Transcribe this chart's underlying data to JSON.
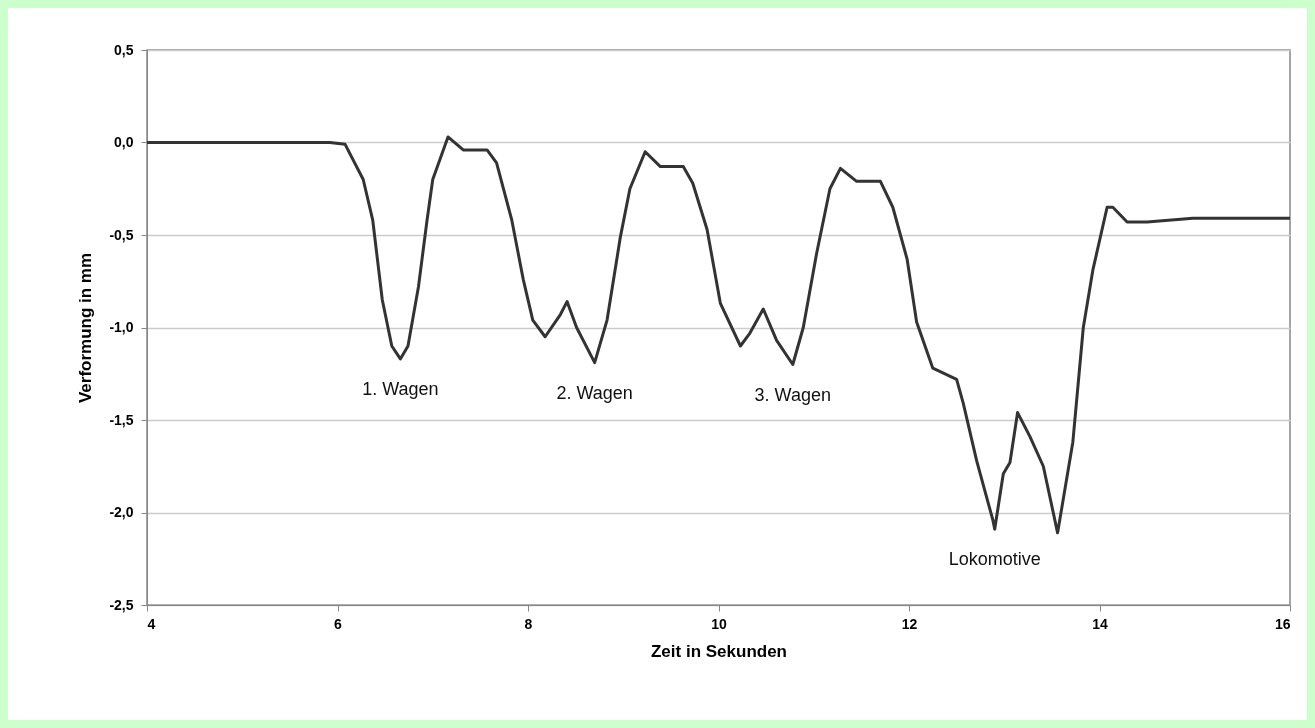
{
  "chart_data": {
    "type": "line",
    "xlabel": "Zeit in Sekunden",
    "ylabel": "Verformung in mm",
    "xlim": [
      4,
      16
    ],
    "xticks": [
      4,
      6,
      8,
      10,
      12,
      14,
      16
    ],
    "ylim": [
      -2.5,
      0.5
    ],
    "yticks": [
      {
        "value": 0.5,
        "label": "0,5"
      },
      {
        "value": 0,
        "label": "0,0"
      },
      {
        "value": -0.5,
        "label": "-0,5"
      },
      {
        "value": -1,
        "label": "-1,0"
      },
      {
        "value": -1.5,
        "label": "-1,5"
      },
      {
        "value": -2,
        "label": "-2,0"
      },
      {
        "value": -2.5,
        "label": "-2,5"
      }
    ],
    "grid": "y",
    "marker": "none",
    "line_style": "solid",
    "series": [
      {
        "color": "#333333",
        "x": [
          4,
          5.92,
          6.08,
          6.27,
          6.37,
          6.47,
          6.57,
          6.66,
          6.74,
          6.85,
          6.94,
          7.0,
          7.16,
          7.32,
          7.57,
          7.67,
          7.83,
          7.95,
          8.05,
          8.18,
          8.34,
          8.41,
          8.51,
          8.7,
          8.83,
          8.97,
          9.07,
          9.23,
          9.39,
          9.63,
          9.73,
          9.88,
          10.02,
          10.23,
          10.33,
          10.47,
          10.61,
          10.78,
          10.89,
          11.03,
          11.17,
          11.28,
          11.45,
          11.7,
          11.83,
          11.98,
          12.08,
          12.25,
          12.5,
          12.57,
          12.71,
          12.88,
          12.9,
          12.99,
          13.06,
          13.14,
          13.27,
          13.41,
          13.56,
          13.72,
          13.83,
          13.93,
          14.08,
          14.14,
          14.29,
          14.5,
          14.98,
          16
        ],
        "values": [
          0,
          0,
          -0.01,
          -0.2,
          -0.42,
          -0.85,
          -1.1,
          -1.17,
          -1.1,
          -0.78,
          -0.42,
          -0.2,
          0.03,
          -0.04,
          -0.04,
          -0.11,
          -0.42,
          -0.74,
          -0.96,
          -1.05,
          -0.93,
          -0.86,
          -1.0,
          -1.19,
          -0.96,
          -0.51,
          -0.25,
          -0.05,
          -0.13,
          -0.13,
          -0.22,
          -0.47,
          -0.87,
          -1.1,
          -1.03,
          -0.9,
          -1.07,
          -1.2,
          -1.0,
          -0.6,
          -0.25,
          -0.14,
          -0.21,
          -0.21,
          -0.35,
          -0.63,
          -0.97,
          -1.22,
          -1.28,
          -1.41,
          -1.72,
          -2.04,
          -2.09,
          -1.79,
          -1.73,
          -1.46,
          -1.59,
          -1.75,
          -2.11,
          -1.62,
          -1.0,
          -0.69,
          -0.35,
          -0.35,
          -0.43,
          -0.43,
          -0.41,
          -0.41
        ]
      }
    ],
    "annotations": [
      {
        "text": "1. Wagen",
        "x": 6.66,
        "y": -1.17
      },
      {
        "text": "2. Wagen",
        "x": 8.7,
        "y": -1.19
      },
      {
        "text": "3. Wagen",
        "x": 10.78,
        "y": -1.2
      },
      {
        "text": "Lokomotive",
        "x": 12.9,
        "y": -2.09
      }
    ]
  }
}
